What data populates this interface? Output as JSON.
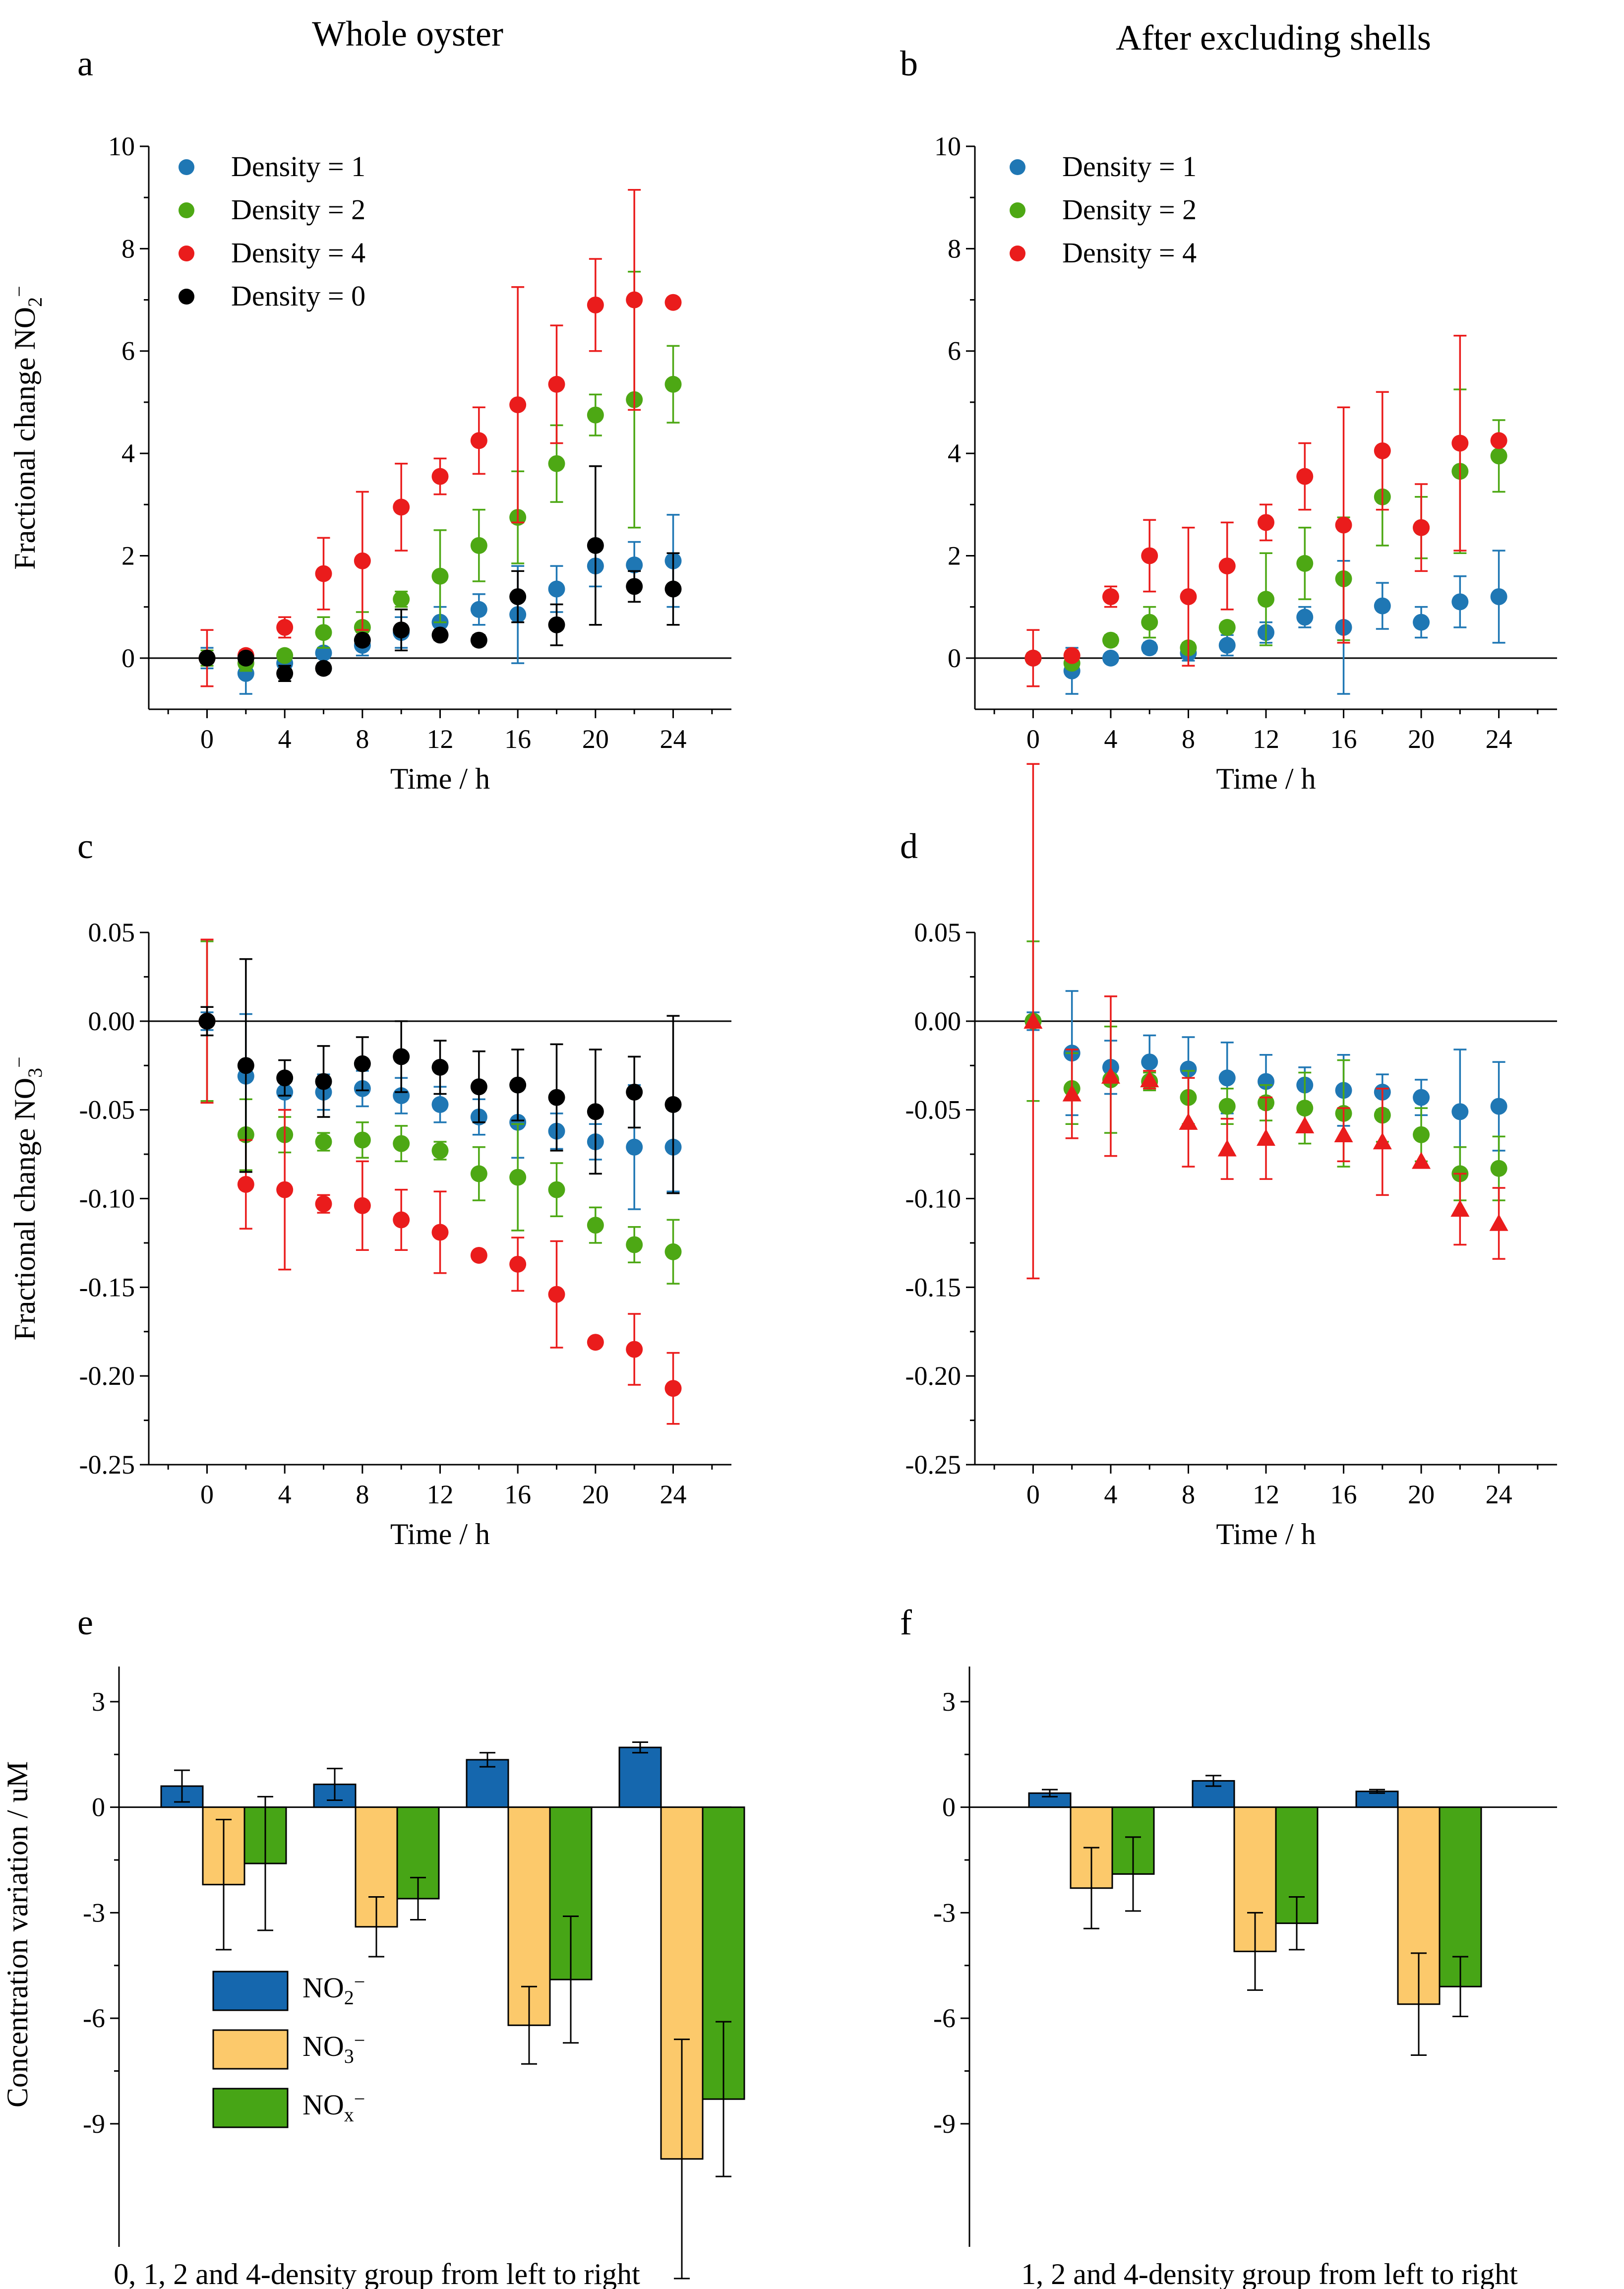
{
  "column_titles": [
    "Whole oyster",
    "After excluding shells"
  ],
  "colors": {
    "density_1": "#1f77b4",
    "density_2": "#4da814",
    "density_4": "#ea1c1c",
    "density_0": "#000000",
    "no2": "#1567ae",
    "no3": "#fcc96b",
    "nox": "#47a516"
  },
  "chart_data": [
    {
      "id": "a",
      "type": "scatter",
      "letter": "a",
      "title": "Whole oyster",
      "xlabel": "Time / h",
      "ylabel_parts": [
        "Fractional change NO",
        "2",
        "−"
      ],
      "xlim": [
        -3,
        27
      ],
      "ylim": [
        -1,
        10
      ],
      "xticks": [
        0,
        4,
        8,
        12,
        16,
        20,
        24
      ],
      "yticks": [
        0,
        2,
        4,
        6,
        8,
        10
      ],
      "legend": [
        "Density = 1",
        "Density = 2",
        "Density = 4",
        "Density = 0"
      ],
      "x": [
        0,
        2,
        4,
        6,
        8,
        10,
        12,
        14,
        16,
        18,
        20,
        22,
        24
      ],
      "series": [
        {
          "name": "Density = 1",
          "color": "#1f77b4",
          "marker": "circle",
          "values": [
            0,
            -0.3,
            -0.1,
            0.1,
            0.25,
            0.5,
            0.7,
            0.95,
            0.85,
            1.35,
            1.8,
            1.82,
            1.9
          ],
          "errors": [
            0.2,
            0.4,
            0.2,
            0.1,
            0.2,
            0.3,
            0.3,
            0.3,
            0.95,
            0.45,
            0.4,
            0.45,
            0.9
          ]
        },
        {
          "name": "Density = 2",
          "color": "#4da814",
          "marker": "circle",
          "values": [
            0,
            -0.1,
            0.05,
            0.5,
            0.6,
            1.15,
            1.6,
            2.2,
            2.75,
            3.8,
            4.75,
            5.05,
            5.35
          ],
          "errors": [
            0.15,
            0.15,
            0.1,
            0.3,
            0.3,
            0.15,
            0.9,
            0.7,
            0.9,
            0.75,
            0.4,
            2.5,
            0.75
          ]
        },
        {
          "name": "Density = 4",
          "color": "#ea1c1c",
          "marker": "circle",
          "values": [
            0,
            0.05,
            0.6,
            1.65,
            1.9,
            2.95,
            3.55,
            4.25,
            4.95,
            5.35,
            6.9,
            7.0,
            6.95
          ],
          "errors": [
            0.55,
            0.1,
            0.2,
            0.7,
            1.35,
            0.85,
            0.35,
            0.65,
            2.3,
            1.15,
            0.9,
            2.15,
            0
          ]
        },
        {
          "name": "Density = 0",
          "color": "#000000",
          "marker": "circle",
          "values": [
            0,
            0,
            -0.3,
            -0.2,
            0.35,
            0.55,
            0.45,
            0.35,
            1.2,
            0.65,
            2.2,
            1.4,
            1.35
          ],
          "errors": [
            0.1,
            0.1,
            0.15,
            0.1,
            0.1,
            0.4,
            0.1,
            0.1,
            0.5,
            0.4,
            1.55,
            0.3,
            0.7
          ]
        }
      ]
    },
    {
      "id": "b",
      "type": "scatter",
      "letter": "b",
      "title": "After excluding shells",
      "xlabel": "Time / h",
      "xlim": [
        -3,
        27
      ],
      "ylim": [
        -1,
        10
      ],
      "xticks": [
        0,
        4,
        8,
        12,
        16,
        20,
        24
      ],
      "yticks": [
        0,
        2,
        4,
        6,
        8,
        10
      ],
      "legend": [
        "Density = 1",
        "Density = 2",
        "Density = 4"
      ],
      "x": [
        0,
        2,
        4,
        6,
        8,
        10,
        12,
        14,
        16,
        18,
        20,
        22,
        24
      ],
      "series": [
        {
          "name": "Density = 1",
          "color": "#1f77b4",
          "marker": "circle",
          "values": [
            0,
            -0.25,
            0,
            0.2,
            0.1,
            0.25,
            0.5,
            0.8,
            0.6,
            1.02,
            0.7,
            1.1,
            1.2
          ],
          "errors": [
            0.1,
            0.45,
            0.05,
            0.1,
            0.15,
            0.2,
            0.2,
            0.2,
            1.3,
            0.45,
            0.3,
            0.5,
            0.9
          ]
        },
        {
          "name": "Density = 2",
          "color": "#4da814",
          "marker": "circle",
          "values": [
            0,
            -0.1,
            0.35,
            0.7,
            0.2,
            0.6,
            1.15,
            1.85,
            1.55,
            3.15,
            2.55,
            3.65,
            3.95
          ],
          "errors": [
            0.1,
            0.1,
            0.1,
            0.3,
            0.1,
            0.1,
            0.9,
            0.7,
            1.2,
            0.95,
            0.6,
            1.6,
            0.7
          ]
        },
        {
          "name": "Density = 4",
          "color": "#ea1c1c",
          "marker": "circle",
          "values": [
            0,
            0.05,
            1.2,
            2.0,
            1.2,
            1.8,
            2.65,
            3.55,
            2.6,
            4.05,
            2.55,
            4.2,
            4.25
          ],
          "errors": [
            0.55,
            0.1,
            0.2,
            0.7,
            1.35,
            0.85,
            0.35,
            0.65,
            2.3,
            1.15,
            0.85,
            2.1,
            0
          ]
        }
      ]
    },
    {
      "id": "c",
      "type": "scatter",
      "letter": "c",
      "xlabel": "Time / h",
      "ylabel_parts": [
        "Fractional change NO",
        "3",
        "−"
      ],
      "xlim": [
        -3,
        27
      ],
      "ylim": [
        -0.25,
        0.05
      ],
      "xticks": [
        0,
        4,
        8,
        12,
        16,
        20,
        24
      ],
      "yticks": [
        0.05,
        0.0,
        -0.05,
        -0.1,
        -0.15,
        -0.2,
        -0.25
      ],
      "ytick_labels": [
        "0.05",
        "0.00",
        "-0.05",
        "-0.10",
        "-0.15",
        "-0.20",
        "-0.25"
      ],
      "x": [
        0,
        2,
        4,
        6,
        8,
        10,
        12,
        14,
        16,
        18,
        20,
        22,
        24
      ],
      "series": [
        {
          "name": "Density = 1",
          "color": "#1f77b4",
          "marker": "circle",
          "values": [
            0,
            -0.031,
            -0.04,
            -0.04,
            -0.038,
            -0.042,
            -0.047,
            -0.054,
            -0.057,
            -0.062,
            -0.068,
            -0.071,
            -0.071
          ],
          "errors": [
            0.005,
            0.035,
            0.01,
            0.01,
            0.01,
            0.01,
            0.01,
            0.01,
            0.02,
            0.01,
            0.01,
            0.035,
            0.025
          ]
        },
        {
          "name": "Density = 2",
          "color": "#4da814",
          "marker": "circle",
          "values": [
            0,
            -0.064,
            -0.064,
            -0.068,
            -0.067,
            -0.069,
            -0.073,
            -0.086,
            -0.088,
            -0.095,
            -0.115,
            -0.126,
            -0.13
          ],
          "errors": [
            0.045,
            0.02,
            0.01,
            0.005,
            0.01,
            0.01,
            0.005,
            0.015,
            0.03,
            0.015,
            0.01,
            0.01,
            0.018
          ]
        },
        {
          "name": "Density = 4",
          "color": "#ea1c1c",
          "marker": "circle",
          "values": [
            0,
            -0.092,
            -0.095,
            -0.103,
            -0.104,
            -0.112,
            -0.119,
            -0.132,
            -0.137,
            -0.154,
            -0.181,
            -0.185,
            -0.207
          ],
          "errors": [
            0.046,
            0.025,
            0.045,
            0.005,
            0.025,
            0.017,
            0.023,
            0,
            0.015,
            0.03,
            0,
            0.02,
            0.02
          ]
        },
        {
          "name": "Density = 0",
          "color": "#000000",
          "marker": "circle",
          "values": [
            0,
            -0.025,
            -0.032,
            -0.034,
            -0.024,
            -0.02,
            -0.026,
            -0.037,
            -0.036,
            -0.043,
            -0.051,
            -0.04,
            -0.047
          ],
          "errors": [
            0.008,
            0.06,
            0.01,
            0.02,
            0.015,
            0.02,
            0.015,
            0.02,
            0.02,
            0.03,
            0.035,
            0.02,
            0.05
          ]
        }
      ]
    },
    {
      "id": "d",
      "type": "scatter",
      "letter": "d",
      "xlabel": "Time / h",
      "xlim": [
        -3,
        27
      ],
      "ylim": [
        -0.25,
        0.05
      ],
      "xticks": [
        0,
        4,
        8,
        12,
        16,
        20,
        24
      ],
      "yticks": [
        0.05,
        0.0,
        -0.05,
        -0.1,
        -0.15,
        -0.2,
        -0.25
      ],
      "ytick_labels": [
        "0.05",
        "0.00",
        "-0.05",
        "-0.10",
        "-0.15",
        "-0.20",
        "-0.25"
      ],
      "x": [
        0,
        2,
        4,
        6,
        8,
        10,
        12,
        14,
        16,
        18,
        20,
        22,
        24
      ],
      "series": [
        {
          "name": "Density = 1",
          "color": "#1f77b4",
          "marker": "circle",
          "values": [
            0,
            -0.018,
            -0.026,
            -0.023,
            -0.027,
            -0.032,
            -0.034,
            -0.036,
            -0.039,
            -0.04,
            -0.043,
            -0.051,
            -0.048
          ],
          "errors": [
            0.005,
            0.035,
            0.015,
            0.015,
            0.018,
            0.02,
            0.015,
            0.01,
            0.02,
            0.01,
            0.01,
            0.035,
            0.025
          ]
        },
        {
          "name": "Density = 2",
          "color": "#4da814",
          "marker": "circle",
          "values": [
            0,
            -0.038,
            -0.033,
            -0.034,
            -0.043,
            -0.048,
            -0.046,
            -0.049,
            -0.052,
            -0.053,
            -0.064,
            -0.086,
            -0.083
          ],
          "errors": [
            0.045,
            0.02,
            0.03,
            0.005,
            0.015,
            0.01,
            0.01,
            0.02,
            0.03,
            0.015,
            0.015,
            0.015,
            0.018
          ]
        },
        {
          "name": "Density = 4",
          "color": "#ea1c1c",
          "marker": "triangle",
          "values": [
            0,
            -0.041,
            -0.031,
            -0.033,
            -0.057,
            -0.072,
            -0.066,
            -0.059,
            -0.064,
            -0.068,
            -0.079,
            -0.106,
            -0.114
          ],
          "errors": [
            0.145,
            0.025,
            0.045,
            0.005,
            0.025,
            0.017,
            0.023,
            0,
            0.015,
            0.03,
            0,
            0.02,
            0.02
          ]
        }
      ]
    },
    {
      "id": "e",
      "type": "bar",
      "letter": "e",
      "xlabel": "0, 1, 2 and 4-density group from left to right",
      "ylabel": "Concentration variation / uM",
      "ylim": [
        -12.5,
        4
      ],
      "yticks": [
        3,
        0,
        -3,
        -6,
        -9
      ],
      "categories": [
        "0",
        "1",
        "2",
        "4"
      ],
      "legend_subs": [
        "2",
        "3",
        "x"
      ],
      "series": [
        {
          "name": "NO2−",
          "label_base": "NO",
          "label_sub": "2",
          "label_sup": "−",
          "color": "#1567ae",
          "values": [
            0.6,
            0.65,
            1.35,
            1.7
          ],
          "errors": [
            0.45,
            0.45,
            0.2,
            0.15
          ]
        },
        {
          "name": "NO3−",
          "label_base": "NO",
          "label_sub": "3",
          "label_sup": "−",
          "color": "#fcc96b",
          "values": [
            -2.2,
            -3.4,
            -6.2,
            -10.0
          ],
          "errors": [
            1.85,
            0.85,
            1.1,
            3.4
          ]
        },
        {
          "name": "NOx−",
          "label_base": "NO",
          "label_sub": "x",
          "label_sup": "−",
          "color": "#47a516",
          "values": [
            -1.6,
            -2.6,
            -4.9,
            -8.3
          ],
          "errors": [
            1.9,
            0.6,
            1.8,
            2.2
          ]
        }
      ]
    },
    {
      "id": "f",
      "type": "bar",
      "letter": "f",
      "xlabel": "1, 2 and 4-density group from left to right",
      "ylim": [
        -12.5,
        4
      ],
      "yticks": [
        3,
        0,
        -3,
        -6,
        -9
      ],
      "categories": [
        "1",
        "2",
        "4"
      ],
      "series": [
        {
          "name": "NO2−",
          "color": "#1567ae",
          "values": [
            0.4,
            0.75,
            0.45
          ],
          "errors": [
            0.1,
            0.15,
            0.05
          ]
        },
        {
          "name": "NO3−",
          "color": "#fcc96b",
          "values": [
            -2.3,
            -4.1,
            -5.6
          ],
          "errors": [
            1.15,
            1.1,
            1.45
          ]
        },
        {
          "name": "NOx−",
          "color": "#47a516",
          "values": [
            -1.9,
            -3.3,
            -5.1
          ],
          "errors": [
            1.05,
            0.75,
            0.85
          ]
        }
      ]
    }
  ]
}
